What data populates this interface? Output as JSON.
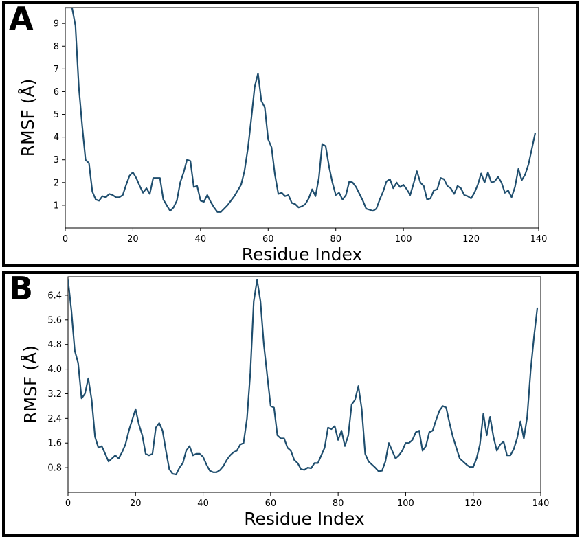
{
  "panels": [
    {
      "letter": "A",
      "chart_data": {
        "type": "line",
        "xlabel": "Residue Index",
        "ylabel": "RMSF (Å)",
        "xlim": [
          0,
          140
        ],
        "ylim": [
          0,
          9.7
        ],
        "xticks": [
          0,
          20,
          40,
          60,
          80,
          100,
          120,
          140
        ],
        "yticks": [
          1,
          2,
          3,
          4,
          5,
          6,
          7,
          8,
          9
        ],
        "grid": false,
        "line_color": "#1f4e6e",
        "series": [
          {
            "x": [
              0,
              1,
              2,
              3,
              4,
              5,
              6,
              7,
              8,
              9,
              10,
              11,
              12,
              13,
              14,
              15,
              16,
              17,
              18,
              19,
              20,
              21,
              22,
              23,
              24,
              25,
              26,
              27,
              28,
              29,
              30,
              31,
              32,
              33,
              34,
              35,
              36,
              37,
              38,
              39,
              40,
              41,
              42,
              43,
              44,
              45,
              46,
              47,
              48,
              49,
              50,
              51,
              52,
              53,
              54,
              55,
              56,
              57,
              58,
              59,
              60,
              61,
              62,
              63,
              64,
              65,
              66,
              67,
              68,
              69,
              70,
              71,
              72,
              73,
              74,
              75,
              76,
              77,
              78,
              79,
              80,
              81,
              82,
              83,
              84,
              85,
              86,
              87,
              88,
              89,
              90,
              91,
              92,
              93,
              94,
              95,
              96,
              97,
              98,
              99,
              100,
              101,
              102,
              103,
              104,
              105,
              106,
              107,
              108,
              109,
              110,
              111,
              112,
              113,
              114,
              115,
              116,
              117,
              118,
              119,
              120,
              121,
              122,
              123,
              124,
              125,
              126,
              127,
              128,
              129,
              130,
              131,
              132,
              133,
              134,
              135,
              136,
              137,
              138,
              139
            ],
            "values": [
              9.7,
              9.7,
              9.7,
              8.9,
              6.2,
              4.5,
              3.0,
              2.85,
              1.6,
              1.25,
              1.2,
              1.4,
              1.35,
              1.5,
              1.45,
              1.35,
              1.35,
              1.45,
              1.9,
              2.3,
              2.45,
              2.2,
              1.85,
              1.55,
              1.75,
              1.5,
              2.2,
              2.2,
              2.2,
              1.25,
              1.0,
              0.75,
              0.9,
              1.2,
              2.0,
              2.45,
              3.0,
              2.95,
              1.8,
              1.85,
              1.2,
              1.15,
              1.45,
              1.15,
              0.9,
              0.7,
              0.7,
              0.85,
              1.0,
              1.2,
              1.4,
              1.65,
              1.9,
              2.5,
              3.5,
              4.8,
              6.2,
              6.8,
              5.6,
              5.3,
              3.9,
              3.55,
              2.35,
              1.5,
              1.55,
              1.4,
              1.45,
              1.1,
              1.05,
              0.9,
              0.95,
              1.05,
              1.3,
              1.7,
              1.4,
              2.2,
              3.7,
              3.6,
              2.7,
              2.0,
              1.45,
              1.55,
              1.25,
              1.45,
              2.05,
              2.0,
              1.8,
              1.5,
              1.2,
              0.85,
              0.8,
              0.75,
              0.85,
              1.25,
              1.6,
              2.05,
              2.15,
              1.75,
              2.0,
              1.8,
              1.9,
              1.7,
              1.45,
              1.95,
              2.5,
              2.0,
              1.85,
              1.25,
              1.3,
              1.65,
              1.7,
              2.2,
              2.15,
              1.85,
              1.75,
              1.5,
              1.85,
              1.75,
              1.45,
              1.4,
              1.3,
              1.55,
              1.9,
              2.4,
              2.0,
              2.45,
              2.0,
              2.05,
              2.25,
              2.0,
              1.55,
              1.65,
              1.35,
              1.8,
              2.6,
              2.1,
              2.35,
              2.8,
              3.5,
              4.2
            ]
          }
        ]
      }
    },
    {
      "letter": "B",
      "chart_data": {
        "type": "line",
        "xlabel": "Residue Index",
        "ylabel": "RMSF (Å)",
        "xlim": [
          0,
          140
        ],
        "ylim": [
          0.0,
          7.0
        ],
        "xticks": [
          0,
          20,
          40,
          60,
          80,
          100,
          120,
          140
        ],
        "yticks": [
          0.8,
          1.6,
          2.4,
          3.2,
          4.0,
          4.8,
          5.6,
          6.4
        ],
        "ytick_labels": [
          "0.8",
          "1.6",
          "2.4",
          "3.2",
          "4.0",
          "4.8",
          "5.6",
          "6.4"
        ],
        "grid": false,
        "line_color": "#1f4e6e",
        "series": [
          {
            "x": [
              0,
              1,
              2,
              3,
              4,
              5,
              6,
              7,
              8,
              9,
              10,
              11,
              12,
              13,
              14,
              15,
              16,
              17,
              18,
              19,
              20,
              21,
              22,
              23,
              24,
              25,
              26,
              27,
              28,
              29,
              30,
              31,
              32,
              33,
              34,
              35,
              36,
              37,
              38,
              39,
              40,
              41,
              42,
              43,
              44,
              45,
              46,
              47,
              48,
              49,
              50,
              51,
              52,
              53,
              54,
              55,
              56,
              57,
              58,
              59,
              60,
              61,
              62,
              63,
              64,
              65,
              66,
              67,
              68,
              69,
              70,
              71,
              72,
              73,
              74,
              75,
              76,
              77,
              78,
              79,
              80,
              81,
              82,
              83,
              84,
              85,
              86,
              87,
              88,
              89,
              90,
              91,
              92,
              93,
              94,
              95,
              96,
              97,
              98,
              99,
              100,
              101,
              102,
              103,
              104,
              105,
              106,
              107,
              108,
              109,
              110,
              111,
              112,
              113,
              114,
              115,
              116,
              117,
              118,
              119,
              120,
              121,
              122,
              123,
              124,
              125,
              126,
              127,
              128,
              129,
              130,
              131,
              132,
              133,
              134,
              135,
              136,
              137,
              138,
              139
            ],
            "values": [
              6.9,
              5.9,
              4.6,
              4.2,
              3.05,
              3.2,
              3.7,
              3.0,
              1.8,
              1.45,
              1.5,
              1.25,
              1.0,
              1.1,
              1.2,
              1.1,
              1.3,
              1.55,
              2.0,
              2.35,
              2.7,
              2.2,
              1.85,
              1.25,
              1.2,
              1.25,
              2.1,
              2.25,
              2.0,
              1.35,
              0.75,
              0.6,
              0.58,
              0.8,
              0.95,
              1.35,
              1.5,
              1.2,
              1.25,
              1.25,
              1.15,
              0.9,
              0.7,
              0.65,
              0.65,
              0.72,
              0.85,
              1.05,
              1.2,
              1.3,
              1.35,
              1.55,
              1.6,
              2.4,
              3.9,
              6.2,
              6.9,
              6.2,
              4.8,
              3.8,
              2.8,
              2.75,
              1.85,
              1.75,
              1.75,
              1.45,
              1.35,
              1.05,
              0.95,
              0.75,
              0.73,
              0.8,
              0.78,
              0.95,
              0.95,
              1.2,
              1.45,
              2.1,
              2.05,
              2.15,
              1.7,
              2.0,
              1.5,
              1.85,
              2.85,
              3.0,
              3.45,
              2.7,
              1.25,
              1.0,
              0.9,
              0.8,
              0.68,
              0.7,
              1.0,
              1.6,
              1.35,
              1.1,
              1.2,
              1.35,
              1.6,
              1.6,
              1.7,
              1.95,
              2.0,
              1.35,
              1.5,
              1.95,
              2.0,
              2.35,
              2.65,
              2.8,
              2.75,
              2.25,
              1.8,
              1.45,
              1.1,
              1.0,
              0.9,
              0.82,
              0.82,
              1.1,
              1.55,
              2.55,
              1.85,
              2.45,
              1.8,
              1.35,
              1.55,
              1.65,
              1.2,
              1.2,
              1.4,
              1.75,
              2.3,
              1.75,
              2.45,
              3.95,
              5.05,
              6.0
            ]
          }
        ]
      }
    }
  ]
}
